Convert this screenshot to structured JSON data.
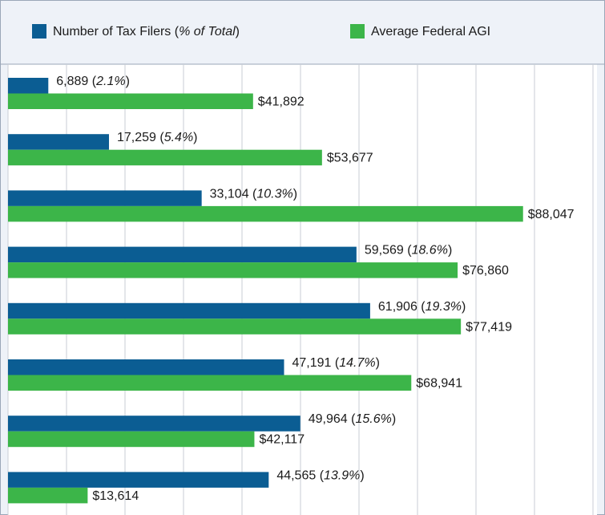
{
  "chart_data": {
    "type": "hbar",
    "categories": [
      null,
      null,
      null,
      null,
      null,
      null,
      null,
      null
    ],
    "series": [
      {
        "name": "Number of Tax Filers (% of Total)",
        "color": "#0b5d93",
        "values": [
          6889,
          17259,
          33104,
          59569,
          61906,
          47191,
          49964,
          44565
        ],
        "value_labels": [
          "6,889 (2.1%)",
          "17,259 (5.4%)",
          "33,104 (10.3%)",
          "59,569 (18.6%)",
          "61,906 (19.3%)",
          "47,191 (14.7%)",
          "49,964 (15.6%)",
          "44,565 (13.9%)"
        ]
      },
      {
        "name": "Average Federal AGI",
        "color": "#3cb549",
        "values": [
          41892,
          53677,
          88047,
          76860,
          77419,
          68941,
          42117,
          13614
        ],
        "value_labels": [
          "$41,892",
          "$53,677",
          "$88,047",
          "$76,860",
          "$77,419",
          "$68,941",
          "$42,117",
          "$13,614"
        ]
      }
    ],
    "xlim": [
      0,
      100000
    ],
    "xticks": [
      0,
      10000,
      20000,
      30000,
      40000,
      50000,
      60000,
      70000,
      80000,
      90000,
      100000
    ],
    "grid": true,
    "legend": "top"
  }
}
